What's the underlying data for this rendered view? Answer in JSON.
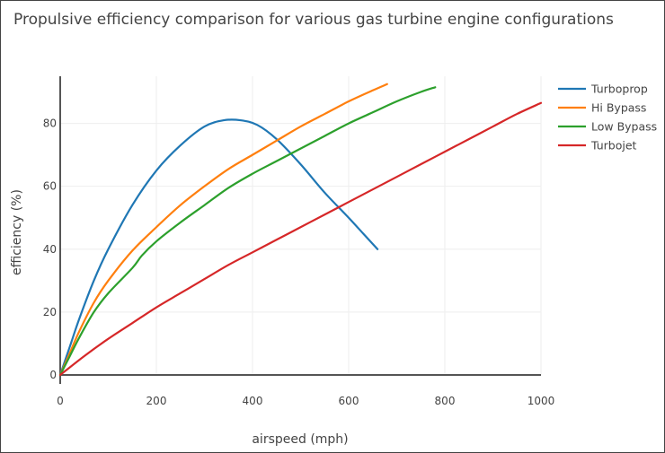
{
  "chart_data": {
    "type": "line",
    "title": "Propulsive efficiency comparison for various gas turbine engine configurations",
    "xlabel": "airspeed (mph)",
    "ylabel": "efficiency (%)",
    "xlim": [
      0,
      1000
    ],
    "ylim": [
      0,
      95
    ],
    "xticks": [
      0,
      200,
      400,
      600,
      800,
      1000
    ],
    "yticks": [
      0,
      20,
      40,
      60,
      80
    ],
    "grid": true,
    "legend_position": "top-right",
    "series": [
      {
        "name": "Turboprop",
        "color": "#1f77b4",
        "x": [
          0,
          20,
          40,
          70,
          100,
          150,
          200,
          250,
          300,
          340,
          375,
          410,
          450,
          500,
          550,
          600,
          630,
          660
        ],
        "y": [
          0,
          9,
          18,
          30,
          40,
          54,
          65,
          73,
          79,
          81,
          81,
          79.5,
          75,
          67,
          58,
          50,
          45,
          40
        ]
      },
      {
        "name": "Hi Bypass",
        "color": "#ff7f0e",
        "x": [
          0,
          20,
          40,
          70,
          100,
          150,
          200,
          250,
          300,
          350,
          400,
          450,
          500,
          550,
          600,
          650,
          680
        ],
        "y": [
          0,
          7,
          14,
          23,
          30,
          39.5,
          47,
          54,
          60,
          65.5,
          70,
          74.5,
          79,
          83,
          87,
          90.5,
          92.5
        ]
      },
      {
        "name": "Low Bypass",
        "color": "#2ca02c",
        "x": [
          0,
          20,
          40,
          70,
          100,
          150,
          170,
          200,
          250,
          300,
          350,
          400,
          450,
          500,
          550,
          600,
          650,
          700,
          750,
          780
        ],
        "y": [
          0,
          6,
          12,
          20,
          26,
          34,
          38,
          42.5,
          48.5,
          54,
          59.5,
          64,
          68,
          72,
          76,
          80,
          83.5,
          87,
          90,
          91.5
        ]
      },
      {
        "name": "Turbojet",
        "color": "#d62728",
        "x": [
          0,
          50,
          100,
          150,
          200,
          250,
          300,
          350,
          400,
          450,
          500,
          550,
          600,
          650,
          700,
          750,
          800,
          850,
          900,
          950,
          1000
        ],
        "y": [
          0,
          6,
          11.5,
          16.5,
          21.5,
          26,
          30.5,
          35,
          39,
          43,
          47,
          51,
          55,
          59,
          63,
          67,
          71,
          75,
          79,
          83,
          86.5
        ]
      }
    ]
  }
}
